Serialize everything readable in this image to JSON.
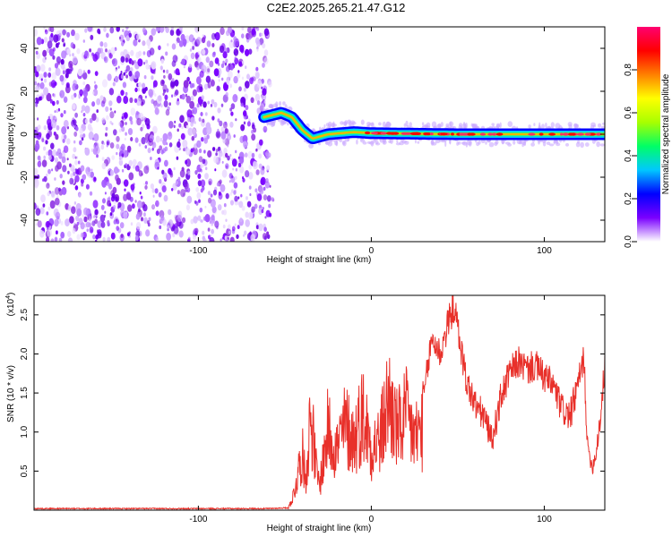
{
  "title": "C2E2.2025.265.21.47.G12",
  "colors": {
    "snr_line": "#e8302a",
    "frame": "#000000"
  },
  "chart_data": [
    {
      "type": "heatmap",
      "title": "C2E2.2025.265.21.47.G12",
      "xlabel": "Height of straight line (km)",
      "ylabel": "Frequency (Hz)",
      "xlim": [
        -195,
        135
      ],
      "ylim": [
        -50,
        50
      ],
      "x_ticks": [
        -100,
        0,
        100
      ],
      "y_ticks": [
        -40,
        -20,
        0,
        20,
        40
      ],
      "noise_region_x": [
        -195,
        -58
      ],
      "signal_track": {
        "x": [
          -62,
          -52,
          -46,
          -40,
          -34,
          -25,
          -10,
          0,
          50,
          100,
          135
        ],
        "y": [
          8,
          10,
          8,
          2,
          -2,
          0,
          1,
          0.5,
          0,
          0,
          0
        ]
      },
      "colorbar": {
        "label": "Normalized spectral amplitude",
        "range": [
          0,
          1
        ],
        "ticks": [
          0.0,
          0.2,
          0.4,
          0.6,
          0.8
        ],
        "tick_labels": [
          "0.0",
          "0.2",
          "0.4",
          "0.6",
          "0.8"
        ],
        "colormap": [
          "#ffffff",
          "#7a00ff",
          "#0000ff",
          "#00c8ff",
          "#00ff66",
          "#a8ff00",
          "#ffff00",
          "#ff8000",
          "#ff0000",
          "#ff0070"
        ]
      }
    },
    {
      "type": "line",
      "xlabel": "Height of straight line (km)",
      "ylabel": "SNR (10 * v/v)",
      "y_multiplier": "(x10",
      "y_multiplier_exp": "4",
      "y_multiplier_close": ")",
      "xlim": [
        -195,
        135
      ],
      "ylim": [
        0,
        2.75
      ],
      "x_ticks": [
        -100,
        0,
        100
      ],
      "y_ticks": [
        0.5,
        1.0,
        1.5,
        2.0,
        2.5
      ],
      "y_tick_labels": [
        "0.5",
        "1.0",
        "1.5",
        "2.0",
        "2.5"
      ],
      "series": [
        {
          "name": "SNR",
          "x": [
            -195,
            -60,
            -48,
            -45,
            -40,
            -38,
            -35,
            -32,
            -30,
            -25,
            -20,
            -15,
            -10,
            -5,
            0,
            5,
            10,
            15,
            20,
            25,
            30,
            35,
            40,
            45,
            48,
            52,
            55,
            60,
            65,
            70,
            75,
            80,
            85,
            90,
            95,
            100,
            105,
            110,
            115,
            120,
            123,
            125,
            128,
            130,
            133,
            135
          ],
          "y": [
            0.02,
            0.02,
            0.03,
            0.25,
            0.95,
            0.5,
            1.6,
            0.7,
            0.4,
            1.35,
            1.0,
            1.4,
            1.15,
            1.6,
            1.05,
            1.15,
            1.85,
            1.3,
            1.55,
            1.2,
            1.4,
            2.2,
            2.0,
            2.45,
            2.6,
            2.05,
            1.65,
            1.35,
            1.2,
            0.9,
            1.45,
            1.75,
            1.9,
            1.8,
            1.85,
            1.7,
            1.6,
            1.3,
            1.2,
            1.65,
            1.95,
            0.8,
            0.55,
            0.75,
            1.3,
            1.85
          ]
        }
      ]
    }
  ]
}
